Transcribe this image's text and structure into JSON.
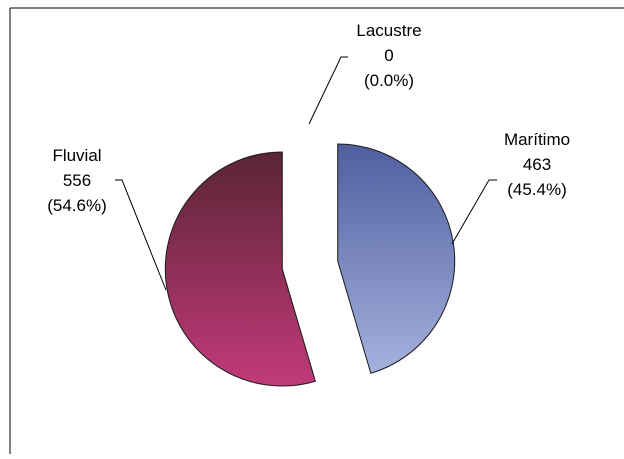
{
  "chart_data": {
    "type": "pie",
    "title": "",
    "slices": [
      {
        "label": "Marítimo",
        "value": 463,
        "percent": "(45.4%)"
      },
      {
        "label": "Lacustre",
        "value": 0,
        "percent": "(0.0%)"
      },
      {
        "label": "Fluvial",
        "value": 556,
        "percent": "(54.6%)"
      }
    ],
    "exploded": true,
    "colors": {
      "maritimo_top": "#4f5e9e",
      "maritimo_bottom": "#a4b2de",
      "fluvial_top": "#5a2535",
      "fluvial_bottom": "#c23a7a",
      "outline": "#1a1a1a",
      "leader": "#000000"
    }
  }
}
